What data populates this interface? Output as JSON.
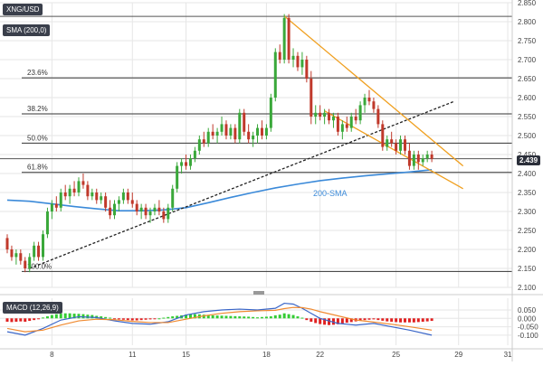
{
  "symbol_label": "XNG/USD",
  "sma_label": "SMA (200,0)",
  "macd_label": "MACD (12,26,9)",
  "sma_annotation": "200-SMA",
  "current_price_label": "2.439",
  "colors": {
    "up": "#3aa83a",
    "down": "#c0392b",
    "sma": "#3b8ad9",
    "trendline": "#222222",
    "channel": "#f0a020",
    "macd_line": "#3a66c8",
    "signal_line": "#f08a30",
    "hist_up": "#33cc33",
    "hist_down": "#e02020",
    "grid": "#e6e6e6",
    "fib": "#333333"
  },
  "chart_data": [
    {
      "type": "candlestick",
      "title": "XNG/USD",
      "ylim": [
        2.1,
        2.85
      ],
      "y_ticks": [
        "2.100",
        "2.150",
        "2.200",
        "2.250",
        "2.300",
        "2.350",
        "2.400",
        "2.450",
        "2.500",
        "2.550",
        "2.600",
        "2.650",
        "2.700",
        "2.750",
        "2.800",
        "2.850"
      ],
      "x_ticks": [
        {
          "label": "8",
          "index": 10
        },
        {
          "label": "11",
          "index": 28
        },
        {
          "label": "15",
          "index": 40
        },
        {
          "label": "18",
          "index": 58
        },
        {
          "label": "22",
          "index": 70
        },
        {
          "label": "25",
          "index": 87
        },
        {
          "label": "29",
          "index": 101
        },
        {
          "label": "31",
          "index": 112
        }
      ],
      "x_range": [
        0,
        113
      ],
      "fibonacci": [
        {
          "label": "23.6%",
          "value": 2.652
        },
        {
          "label": "38.2%",
          "value": 2.557
        },
        {
          "label": "50.0%",
          "value": 2.48
        },
        {
          "label": "61.8%",
          "value": 2.403
        },
        {
          "label": "100.0%",
          "value": 2.142
        }
      ],
      "horizontal_levels": [
        2.814,
        2.439
      ],
      "current_price": 2.439,
      "candles": [
        [
          0,
          2.23,
          2.24,
          2.19,
          2.2
        ],
        [
          1,
          2.2,
          2.21,
          2.17,
          2.18
        ],
        [
          2,
          2.18,
          2.2,
          2.16,
          2.19
        ],
        [
          3,
          2.19,
          2.2,
          2.16,
          2.17
        ],
        [
          4,
          2.17,
          2.18,
          2.14,
          2.15
        ],
        [
          5,
          2.15,
          2.19,
          2.14,
          2.18
        ],
        [
          6,
          2.18,
          2.22,
          2.17,
          2.21
        ],
        [
          7,
          2.21,
          2.22,
          2.17,
          2.18
        ],
        [
          8,
          2.18,
          2.25,
          2.17,
          2.24
        ],
        [
          9,
          2.24,
          2.31,
          2.23,
          2.3
        ],
        [
          10,
          2.3,
          2.33,
          2.28,
          2.32
        ],
        [
          11,
          2.32,
          2.34,
          2.3,
          2.31
        ],
        [
          12,
          2.31,
          2.36,
          2.3,
          2.35
        ],
        [
          13,
          2.35,
          2.37,
          2.33,
          2.34
        ],
        [
          14,
          2.34,
          2.37,
          2.32,
          2.36
        ],
        [
          15,
          2.36,
          2.38,
          2.34,
          2.35
        ],
        [
          16,
          2.35,
          2.39,
          2.34,
          2.38
        ],
        [
          17,
          2.38,
          2.4,
          2.36,
          2.37
        ],
        [
          18,
          2.37,
          2.38,
          2.33,
          2.34
        ],
        [
          19,
          2.34,
          2.36,
          2.33,
          2.35
        ],
        [
          20,
          2.35,
          2.36,
          2.32,
          2.33
        ],
        [
          21,
          2.33,
          2.35,
          2.32,
          2.34
        ],
        [
          22,
          2.34,
          2.35,
          2.3,
          2.31
        ],
        [
          23,
          2.31,
          2.33,
          2.28,
          2.29
        ],
        [
          24,
          2.29,
          2.33,
          2.28,
          2.32
        ],
        [
          25,
          2.32,
          2.34,
          2.3,
          2.33
        ],
        [
          26,
          2.33,
          2.36,
          2.32,
          2.35
        ],
        [
          27,
          2.35,
          2.36,
          2.32,
          2.33
        ],
        [
          28,
          2.33,
          2.35,
          2.31,
          2.32
        ],
        [
          29,
          2.32,
          2.33,
          2.29,
          2.3
        ],
        [
          30,
          2.3,
          2.32,
          2.28,
          2.31
        ],
        [
          31,
          2.31,
          2.32,
          2.28,
          2.29
        ],
        [
          32,
          2.29,
          2.31,
          2.27,
          2.3
        ],
        [
          33,
          2.3,
          2.32,
          2.29,
          2.31
        ],
        [
          34,
          2.31,
          2.33,
          2.29,
          2.3
        ],
        [
          35,
          2.3,
          2.31,
          2.27,
          2.28
        ],
        [
          36,
          2.28,
          2.32,
          2.27,
          2.31
        ],
        [
          37,
          2.31,
          2.37,
          2.3,
          2.36
        ],
        [
          38,
          2.36,
          2.43,
          2.35,
          2.42
        ],
        [
          39,
          2.42,
          2.44,
          2.4,
          2.43
        ],
        [
          40,
          2.43,
          2.45,
          2.41,
          2.42
        ],
        [
          41,
          2.42,
          2.45,
          2.41,
          2.44
        ],
        [
          42,
          2.44,
          2.47,
          2.43,
          2.46
        ],
        [
          43,
          2.46,
          2.5,
          2.45,
          2.49
        ],
        [
          44,
          2.49,
          2.51,
          2.47,
          2.48
        ],
        [
          45,
          2.48,
          2.52,
          2.47,
          2.51
        ],
        [
          46,
          2.51,
          2.53,
          2.49,
          2.5
        ],
        [
          47,
          2.5,
          2.52,
          2.48,
          2.51
        ],
        [
          48,
          2.51,
          2.55,
          2.5,
          2.53
        ],
        [
          49,
          2.53,
          2.54,
          2.49,
          2.5
        ],
        [
          50,
          2.5,
          2.53,
          2.49,
          2.52
        ],
        [
          51,
          2.52,
          2.53,
          2.48,
          2.49
        ],
        [
          52,
          2.49,
          2.57,
          2.48,
          2.56
        ],
        [
          53,
          2.56,
          2.57,
          2.5,
          2.51
        ],
        [
          54,
          2.51,
          2.53,
          2.48,
          2.49
        ],
        [
          55,
          2.49,
          2.51,
          2.47,
          2.5
        ],
        [
          56,
          2.5,
          2.53,
          2.48,
          2.52
        ],
        [
          57,
          2.52,
          2.54,
          2.49,
          2.5
        ],
        [
          58,
          2.5,
          2.53,
          2.49,
          2.52
        ],
        [
          59,
          2.52,
          2.61,
          2.51,
          2.6
        ],
        [
          60,
          2.6,
          2.73,
          2.59,
          2.72
        ],
        [
          61,
          2.72,
          2.74,
          2.69,
          2.7
        ],
        [
          62,
          2.7,
          2.82,
          2.69,
          2.81
        ],
        [
          63,
          2.81,
          2.82,
          2.69,
          2.7
        ],
        [
          64,
          2.7,
          2.73,
          2.68,
          2.71
        ],
        [
          65,
          2.71,
          2.72,
          2.67,
          2.68
        ],
        [
          66,
          2.68,
          2.72,
          2.66,
          2.7
        ],
        [
          67,
          2.7,
          2.71,
          2.64,
          2.65
        ],
        [
          68,
          2.65,
          2.67,
          2.53,
          2.55
        ],
        [
          69,
          2.55,
          2.58,
          2.53,
          2.56
        ],
        [
          70,
          2.56,
          2.58,
          2.54,
          2.55
        ],
        [
          71,
          2.55,
          2.57,
          2.53,
          2.56
        ],
        [
          72,
          2.56,
          2.57,
          2.53,
          2.54
        ],
        [
          73,
          2.54,
          2.56,
          2.52,
          2.55
        ],
        [
          74,
          2.55,
          2.56,
          2.5,
          2.51
        ],
        [
          75,
          2.51,
          2.54,
          2.49,
          2.53
        ],
        [
          76,
          2.53,
          2.55,
          2.51,
          2.52
        ],
        [
          77,
          2.52,
          2.56,
          2.51,
          2.55
        ],
        [
          78,
          2.55,
          2.57,
          2.53,
          2.54
        ],
        [
          79,
          2.54,
          2.59,
          2.53,
          2.58
        ],
        [
          80,
          2.58,
          2.61,
          2.56,
          2.6
        ],
        [
          81,
          2.6,
          2.62,
          2.58,
          2.59
        ],
        [
          82,
          2.59,
          2.6,
          2.56,
          2.57
        ],
        [
          83,
          2.57,
          2.58,
          2.52,
          2.53
        ],
        [
          84,
          2.53,
          2.54,
          2.46,
          2.47
        ],
        [
          85,
          2.47,
          2.5,
          2.46,
          2.49
        ],
        [
          86,
          2.49,
          2.51,
          2.47,
          2.48
        ],
        [
          87,
          2.48,
          2.49,
          2.45,
          2.46
        ],
        [
          88,
          2.46,
          2.5,
          2.45,
          2.49
        ],
        [
          89,
          2.49,
          2.5,
          2.45,
          2.46
        ],
        [
          90,
          2.46,
          2.48,
          2.41,
          2.42
        ],
        [
          91,
          2.42,
          2.46,
          2.41,
          2.45
        ],
        [
          92,
          2.45,
          2.46,
          2.41,
          2.43
        ],
        [
          93,
          2.43,
          2.45,
          2.42,
          2.44
        ],
        [
          94,
          2.44,
          2.46,
          2.43,
          2.45
        ],
        [
          95,
          2.45,
          2.46,
          2.43,
          2.439
        ]
      ],
      "sma_200": [
        [
          0,
          2.33
        ],
        [
          5,
          2.327
        ],
        [
          10,
          2.32
        ],
        [
          15,
          2.313
        ],
        [
          20,
          2.307
        ],
        [
          25,
          2.302
        ],
        [
          30,
          2.302
        ],
        [
          35,
          2.304
        ],
        [
          40,
          2.31
        ],
        [
          45,
          2.323
        ],
        [
          50,
          2.337
        ],
        [
          55,
          2.35
        ],
        [
          60,
          2.362
        ],
        [
          65,
          2.372
        ],
        [
          70,
          2.381
        ],
        [
          75,
          2.388
        ],
        [
          80,
          2.394
        ],
        [
          85,
          2.399
        ],
        [
          90,
          2.404
        ],
        [
          95,
          2.41
        ]
      ],
      "trendlines": [
        {
          "name": "support",
          "style": "dotted",
          "points": [
            [
              5,
              2.15
            ],
            [
              100,
              2.59
            ]
          ]
        },
        {
          "name": "falling-upper",
          "style": "solid",
          "points": [
            [
              62,
              2.815
            ],
            [
              102,
              2.42
            ]
          ]
        },
        {
          "name": "falling-lower",
          "style": "solid",
          "points": [
            [
              71,
              2.565
            ],
            [
              102,
              2.36
            ]
          ]
        }
      ]
    },
    {
      "type": "line+histogram",
      "title": "MACD (12,26,9)",
      "ylim": [
        -0.16,
        0.12
      ],
      "y_ticks": [
        "0.050",
        "0.000",
        "-0.050",
        "-0.100"
      ],
      "macd": [
        [
          0,
          -0.08
        ],
        [
          4,
          -0.1
        ],
        [
          8,
          -0.06
        ],
        [
          12,
          -0.01
        ],
        [
          16,
          0.01
        ],
        [
          20,
          0.005
        ],
        [
          24,
          -0.015
        ],
        [
          28,
          -0.03
        ],
        [
          32,
          -0.035
        ],
        [
          36,
          -0.02
        ],
        [
          40,
          0.02
        ],
        [
          44,
          0.04
        ],
        [
          48,
          0.05
        ],
        [
          52,
          0.055
        ],
        [
          56,
          0.05
        ],
        [
          60,
          0.06
        ],
        [
          62,
          0.09
        ],
        [
          64,
          0.085
        ],
        [
          66,
          0.06
        ],
        [
          68,
          0.03
        ],
        [
          70,
          0.0
        ],
        [
          74,
          -0.03
        ],
        [
          78,
          -0.04
        ],
        [
          82,
          -0.03
        ],
        [
          86,
          -0.05
        ],
        [
          90,
          -0.07
        ],
        [
          95,
          -0.1
        ]
      ],
      "signal": [
        [
          0,
          -0.06
        ],
        [
          4,
          -0.08
        ],
        [
          8,
          -0.07
        ],
        [
          12,
          -0.04
        ],
        [
          16,
          -0.015
        ],
        [
          20,
          -0.005
        ],
        [
          24,
          -0.008
        ],
        [
          28,
          -0.018
        ],
        [
          32,
          -0.025
        ],
        [
          36,
          -0.025
        ],
        [
          40,
          -0.005
        ],
        [
          44,
          0.015
        ],
        [
          48,
          0.03
        ],
        [
          52,
          0.04
        ],
        [
          56,
          0.045
        ],
        [
          60,
          0.048
        ],
        [
          62,
          0.058
        ],
        [
          64,
          0.065
        ],
        [
          66,
          0.064
        ],
        [
          68,
          0.055
        ],
        [
          70,
          0.04
        ],
        [
          74,
          0.015
        ],
        [
          78,
          -0.01
        ],
        [
          82,
          -0.022
        ],
        [
          86,
          -0.035
        ],
        [
          90,
          -0.05
        ],
        [
          95,
          -0.07
        ]
      ],
      "histogram": [
        -0.02,
        -0.022,
        -0.02,
        -0.018,
        -0.02,
        -0.015,
        -0.01,
        -0.005,
        0.005,
        0.012,
        0.02,
        0.025,
        0.028,
        0.03,
        0.03,
        0.028,
        0.027,
        0.025,
        0.022,
        0.02,
        0.015,
        0.012,
        0.008,
        0.004,
        -0.002,
        -0.006,
        -0.008,
        -0.01,
        -0.012,
        -0.012,
        -0.01,
        -0.008,
        -0.006,
        -0.004,
        0.0,
        0.004,
        0.008,
        0.012,
        0.015,
        0.018,
        0.022,
        0.024,
        0.025,
        0.024,
        0.022,
        0.02,
        0.018,
        0.017,
        0.016,
        0.015,
        0.014,
        0.013,
        0.012,
        0.011,
        0.01,
        0.008,
        0.006,
        0.008,
        0.01,
        0.012,
        0.018,
        0.022,
        0.03,
        0.025,
        0.02,
        0.012,
        0.004,
        -0.01,
        -0.02,
        -0.028,
        -0.034,
        -0.038,
        -0.04,
        -0.038,
        -0.035,
        -0.03,
        -0.026,
        -0.022,
        -0.018,
        -0.014,
        -0.01,
        -0.008,
        -0.006,
        -0.01,
        -0.014,
        -0.018,
        -0.02,
        -0.022,
        -0.024,
        -0.024,
        -0.024,
        -0.024,
        -0.022,
        -0.02,
        -0.018,
        -0.015
      ]
    }
  ]
}
